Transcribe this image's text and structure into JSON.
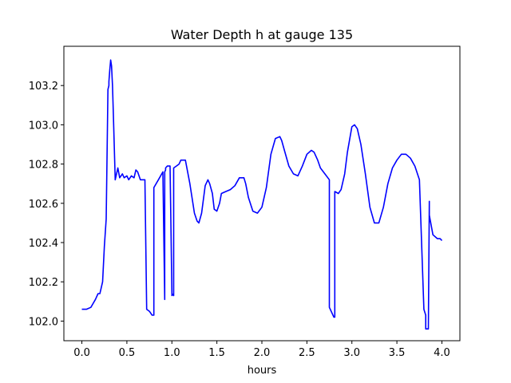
{
  "chart_data": {
    "type": "line",
    "title": "Water Depth h at gauge 135",
    "xlabel": "hours",
    "ylabel": "",
    "xlim": [
      -0.2,
      4.2
    ],
    "ylim": [
      101.9,
      103.4
    ],
    "xticks": [
      0.0,
      0.5,
      1.0,
      1.5,
      2.0,
      2.5,
      3.0,
      3.5,
      4.0
    ],
    "xtick_labels": [
      "0.0",
      "0.5",
      "1.0",
      "1.5",
      "2.0",
      "2.5",
      "3.0",
      "3.5",
      "4.0"
    ],
    "yticks": [
      102.0,
      102.2,
      102.4,
      102.6,
      102.8,
      103.0,
      103.2
    ],
    "ytick_labels": [
      "102.0",
      "102.2",
      "102.4",
      "102.6",
      "102.8",
      "103.0",
      "103.2"
    ],
    "grid": false,
    "colors": {
      "line": "#0000ff",
      "axes": "#000000"
    },
    "series": [
      {
        "x": [
          0.0,
          0.05,
          0.1,
          0.15,
          0.18,
          0.2,
          0.23,
          0.25,
          0.27,
          0.29,
          0.3,
          0.3,
          0.31,
          0.32,
          0.33,
          0.34,
          0.35,
          0.37,
          0.4,
          0.42,
          0.45,
          0.47,
          0.5,
          0.52,
          0.55,
          0.58,
          0.6,
          0.62,
          0.65,
          0.67,
          0.7,
          0.72,
          0.72,
          0.75,
          0.78,
          0.8,
          0.8,
          0.85,
          0.9,
          0.92,
          0.92,
          0.93,
          0.93,
          0.95,
          0.98,
          1.0,
          1.0,
          1.0,
          1.02,
          1.02,
          1.05,
          1.08,
          1.1,
          1.13,
          1.15,
          1.2,
          1.25,
          1.28,
          1.3,
          1.33,
          1.37,
          1.4,
          1.42,
          1.45,
          1.47,
          1.5,
          1.53,
          1.55,
          1.6,
          1.65,
          1.7,
          1.75,
          1.8,
          1.82,
          1.85,
          1.9,
          1.95,
          2.0,
          2.05,
          2.1,
          2.15,
          2.2,
          2.22,
          2.25,
          2.3,
          2.35,
          2.4,
          2.45,
          2.5,
          2.55,
          2.58,
          2.62,
          2.65,
          2.7,
          2.75,
          2.75,
          2.8,
          2.81,
          2.81,
          2.85,
          2.88,
          2.92,
          2.95,
          3.0,
          3.03,
          3.06,
          3.1,
          3.15,
          3.2,
          3.25,
          3.3,
          3.35,
          3.4,
          3.45,
          3.5,
          3.55,
          3.6,
          3.65,
          3.7,
          3.75,
          3.8,
          3.82,
          3.82,
          3.85,
          3.86,
          3.86,
          3.9,
          3.95,
          3.98,
          4.0
        ],
        "values": [
          102.06,
          102.06,
          102.07,
          102.11,
          102.14,
          102.14,
          102.2,
          102.38,
          102.52,
          103.18,
          103.2,
          103.22,
          103.28,
          103.33,
          103.3,
          103.2,
          103.05,
          102.72,
          102.78,
          102.73,
          102.75,
          102.73,
          102.74,
          102.72,
          102.74,
          102.73,
          102.77,
          102.76,
          102.72,
          102.72,
          102.72,
          102.06,
          102.06,
          102.05,
          102.03,
          102.03,
          102.68,
          102.72,
          102.76,
          102.11,
          102.76,
          102.77,
          102.78,
          102.79,
          102.79,
          102.14,
          102.13,
          102.14,
          102.13,
          102.78,
          102.79,
          102.8,
          102.82,
          102.82,
          102.82,
          102.7,
          102.55,
          102.51,
          102.5,
          102.55,
          102.69,
          102.72,
          102.7,
          102.65,
          102.57,
          102.56,
          102.6,
          102.65,
          102.66,
          102.67,
          102.69,
          102.73,
          102.73,
          102.7,
          102.63,
          102.56,
          102.55,
          102.58,
          102.68,
          102.85,
          102.93,
          102.94,
          102.92,
          102.87,
          102.79,
          102.75,
          102.74,
          102.79,
          102.85,
          102.87,
          102.86,
          102.82,
          102.78,
          102.75,
          102.72,
          102.07,
          102.02,
          102.02,
          102.66,
          102.65,
          102.67,
          102.75,
          102.86,
          102.99,
          103.0,
          102.98,
          102.9,
          102.75,
          102.58,
          102.5,
          102.5,
          102.58,
          102.7,
          102.78,
          102.82,
          102.85,
          102.85,
          102.83,
          102.79,
          102.72,
          102.06,
          102.03,
          101.96,
          101.96,
          102.61,
          102.54,
          102.44,
          102.42,
          102.42,
          102.41
        ]
      }
    ]
  }
}
